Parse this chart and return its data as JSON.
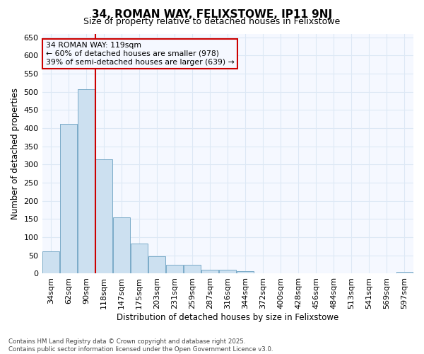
{
  "title_line1": "34, ROMAN WAY, FELIXSTOWE, IP11 9NJ",
  "title_line2": "Size of property relative to detached houses in Felixstowe",
  "xlabel": "Distribution of detached houses by size in Felixstowe",
  "ylabel": "Number of detached properties",
  "categories": [
    "34sqm",
    "62sqm",
    "90sqm",
    "118sqm",
    "147sqm",
    "175sqm",
    "203sqm",
    "231sqm",
    "259sqm",
    "287sqm",
    "316sqm",
    "344sqm",
    "372sqm",
    "400sqm",
    "428sqm",
    "456sqm",
    "484sqm",
    "513sqm",
    "541sqm",
    "569sqm",
    "597sqm"
  ],
  "values": [
    62,
    412,
    507,
    314,
    155,
    83,
    47,
    25,
    25,
    10,
    10,
    7,
    0,
    0,
    0,
    0,
    0,
    0,
    0,
    0,
    4
  ],
  "bar_color": "#cce0f0",
  "bar_edge_color": "#7aaac8",
  "bg_color": "#ffffff",
  "plot_bg_color": "#f5f8ff",
  "grid_color": "#dde8f5",
  "vline_color": "#cc0000",
  "vline_x_index": 3,
  "annotation_text": "34 ROMAN WAY: 119sqm\n← 60% of detached houses are smaller (978)\n39% of semi-detached houses are larger (639) →",
  "annotation_box_edgecolor": "#cc0000",
  "ylim": [
    0,
    660
  ],
  "yticks": [
    0,
    50,
    100,
    150,
    200,
    250,
    300,
    350,
    400,
    450,
    500,
    550,
    600,
    650
  ],
  "footnote": "Contains HM Land Registry data © Crown copyright and database right 2025.\nContains public sector information licensed under the Open Government Licence v3.0."
}
